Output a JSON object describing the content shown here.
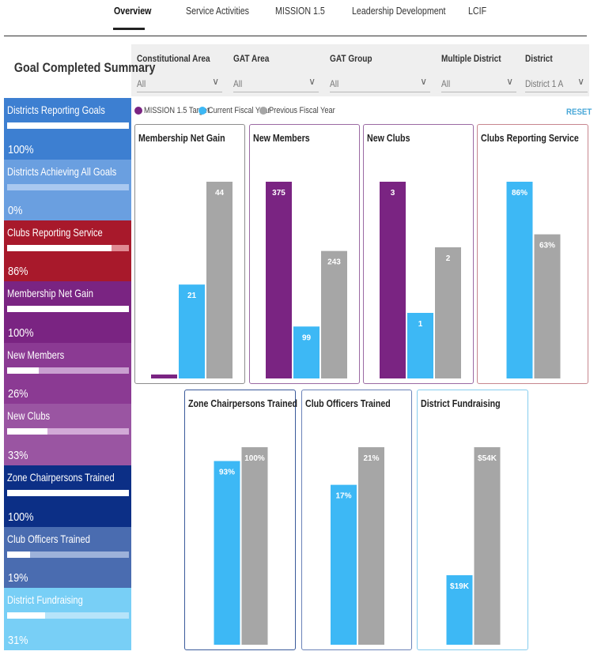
{
  "nav": {
    "tabs": [
      "Overview",
      "Service Activities",
      "MISSION 1.5",
      "Leadership Development",
      "LCIF"
    ],
    "active": "Overview"
  },
  "filters": [
    {
      "label": "Constitutional Area",
      "value": "All"
    },
    {
      "label": "GAT Area",
      "value": "All"
    },
    {
      "label": "GAT Group",
      "value": "All"
    },
    {
      "label": "Multiple District",
      "value": "All"
    },
    {
      "label": "District",
      "value": "District 1 A"
    }
  ],
  "legend": {
    "items": [
      {
        "label": "MISSION 1.5 Target",
        "color": "#7a2482"
      },
      {
        "label": "Current Fiscal Year",
        "color": "#3db8f5"
      },
      {
        "label": "Previous Fiscal Year",
        "color": "#a6a6a6"
      }
    ],
    "reset_label": "RESET"
  },
  "summary": {
    "title": "Goal Completed Summary",
    "tiles": [
      {
        "label": "Districts Reporting Goals",
        "value": "100%",
        "progress": 1.0,
        "bg": "#3d7fd1",
        "track": "#3d7fd1"
      },
      {
        "label": "Districts Achieving All Goals",
        "value": "0%",
        "progress": 0.0,
        "bg": "#6a9fe0",
        "track": "#a9c8f0"
      },
      {
        "label": "Clubs Reporting Service",
        "value": "86%",
        "progress": 0.86,
        "bg": "#a8192b",
        "track": "#e08a93"
      },
      {
        "label": "Membership Net Gain",
        "value": "100%",
        "progress": 1.0,
        "bg": "#7a2482",
        "track": "#7a2482"
      },
      {
        "label": "New Members",
        "value": "26%",
        "progress": 0.26,
        "bg": "#8b3a93",
        "track": "#c99fd0"
      },
      {
        "label": "New Clubs",
        "value": "33%",
        "progress": 0.33,
        "bg": "#9a55a2",
        "track": "#d2a9d7"
      },
      {
        "label": "Zone Chairpersons Trained",
        "value": "100%",
        "progress": 1.0,
        "bg": "#0c2f86",
        "track": "#0c2f86"
      },
      {
        "label": "Club Officers Trained",
        "value": "19%",
        "progress": 0.19,
        "bg": "#4a6cb0",
        "track": "#9db2da"
      },
      {
        "label": "District Fundraising",
        "value": "31%",
        "progress": 0.31,
        "bg": "#78cff6",
        "track": "#b6e4fa"
      }
    ]
  },
  "colors": {
    "target": "#7a2482",
    "current": "#3db8f5",
    "previous": "#a6a6a6"
  },
  "chart_data": [
    {
      "type": "bar",
      "title": "Membership Net Gain",
      "series": [
        {
          "name": "MISSION 1.5 Target",
          "value": 0,
          "label": ""
        },
        {
          "name": "Current Fiscal Year",
          "value": 21,
          "label": "21"
        },
        {
          "name": "Previous Fiscal Year",
          "value": 44,
          "label": "44"
        }
      ]
    },
    {
      "type": "bar",
      "title": "New Members",
      "series": [
        {
          "name": "MISSION 1.5 Target",
          "value": 375,
          "label": "375"
        },
        {
          "name": "Current Fiscal Year",
          "value": 99,
          "label": "99"
        },
        {
          "name": "Previous Fiscal Year",
          "value": 243,
          "label": "243"
        }
      ]
    },
    {
      "type": "bar",
      "title": "New Clubs",
      "series": [
        {
          "name": "MISSION 1.5 Target",
          "value": 3,
          "label": "3"
        },
        {
          "name": "Current Fiscal Year",
          "value": 1,
          "label": "1"
        },
        {
          "name": "Previous Fiscal Year",
          "value": 2,
          "label": "2"
        }
      ]
    },
    {
      "type": "bar",
      "title": "Clubs Reporting Service",
      "series": [
        {
          "name": "Current Fiscal Year",
          "value": 86,
          "label": "86%"
        },
        {
          "name": "Previous Fiscal Year",
          "value": 63,
          "label": "63%"
        }
      ]
    },
    {
      "type": "bar",
      "title": "Zone Chairpersons Trained",
      "series": [
        {
          "name": "Current Fiscal Year",
          "value": 93,
          "label": "93%"
        },
        {
          "name": "Previous Fiscal Year",
          "value": 100,
          "label": "100%"
        }
      ]
    },
    {
      "type": "bar",
      "title": "Club Officers Trained",
      "series": [
        {
          "name": "Current Fiscal Year",
          "value": 17,
          "label": "17%"
        },
        {
          "name": "Previous Fiscal Year",
          "value": 21,
          "label": "21%"
        }
      ]
    },
    {
      "type": "bar",
      "title": "District Fundraising",
      "series": [
        {
          "name": "Current Fiscal Year",
          "value": 19,
          "label": "$19K"
        },
        {
          "name": "Previous Fiscal Year",
          "value": 54,
          "label": "$54K"
        }
      ]
    }
  ]
}
